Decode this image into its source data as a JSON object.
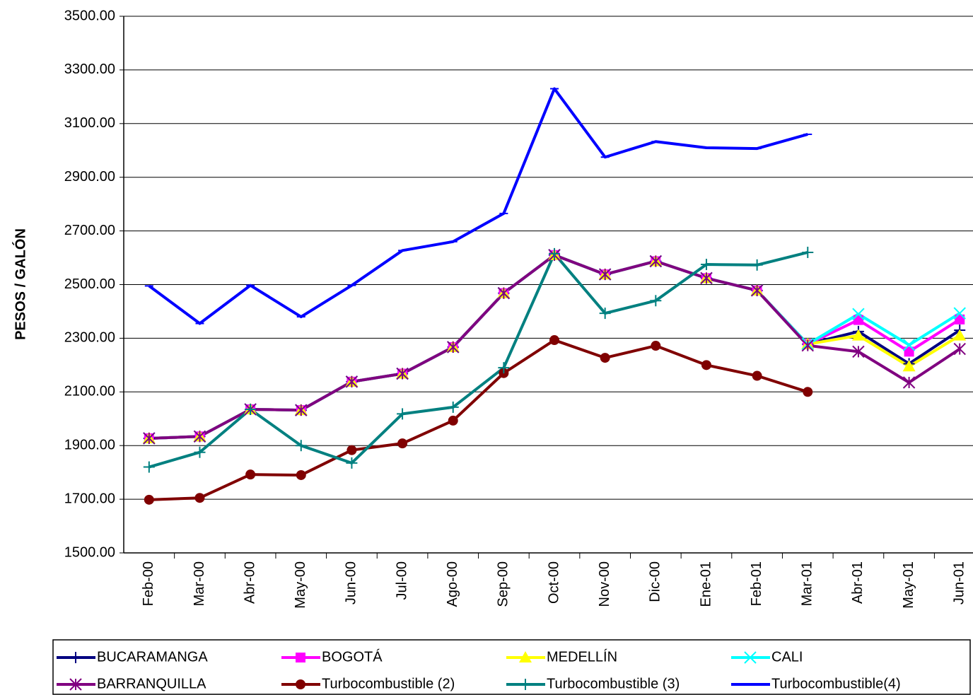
{
  "chart_data": {
    "type": "line",
    "y_label": "PESOS / GALÓN",
    "categories": [
      "Feb-00",
      "Mar-00",
      "Abr-00",
      "May-00",
      "Jun-00",
      "Jul-00",
      "Ago-00",
      "Sep-00",
      "Oct-00",
      "Nov-00",
      "Dic-00",
      "Ene-01",
      "Feb-01",
      "Mar-01",
      "Abr-01",
      "May-01",
      "Jun-01"
    ],
    "ylim": [
      1500,
      3500
    ],
    "yticks": [
      {
        "value": 1500,
        "label": "1500.00"
      },
      {
        "value": 1700,
        "label": "1700.00"
      },
      {
        "value": 1900,
        "label": "1900.00"
      },
      {
        "value": 2100,
        "label": "2100.00"
      },
      {
        "value": 2300,
        "label": "2300.00"
      },
      {
        "value": 2500,
        "label": "2500.00"
      },
      {
        "value": 2700,
        "label": "2700.00"
      },
      {
        "value": 2900,
        "label": "2900.00"
      },
      {
        "value": 3100,
        "label": "3100.00"
      },
      {
        "value": 3300,
        "label": "3300.00"
      },
      {
        "value": 3500,
        "label": "3500.00"
      }
    ],
    "grid": true,
    "legend": "bottom",
    "series": [
      {
        "name": "BUCARAMANGA",
        "color": "#000080",
        "marker": "plus",
        "values": [
          1927,
          1934,
          2035,
          2032,
          2138,
          2168,
          2267,
          2468,
          2610,
          2538,
          2587,
          2524,
          2478,
          2278,
          2325,
          2205,
          2330
        ]
      },
      {
        "name": "BOGOTÁ",
        "color": "#ff00ff",
        "marker": "square",
        "values": [
          1927,
          1934,
          2035,
          2032,
          2138,
          2168,
          2267,
          2468,
          2610,
          2538,
          2587,
          2524,
          2478,
          2278,
          2368,
          2250,
          2370
        ]
      },
      {
        "name": "MEDELLÍN",
        "color": "#ffff00",
        "marker": "triangle",
        "values": [
          1927,
          1934,
          2035,
          2032,
          2138,
          2168,
          2267,
          2468,
          2610,
          2538,
          2587,
          2524,
          2478,
          2278,
          2310,
          2195,
          2310
        ]
      },
      {
        "name": "CALI",
        "color": "#00ffff",
        "marker": "x",
        "values": [
          1927,
          1934,
          2035,
          2032,
          2138,
          2168,
          2267,
          2468,
          2610,
          2538,
          2587,
          2524,
          2478,
          2278,
          2390,
          2275,
          2393
        ]
      },
      {
        "name": "BARRANQUILLA",
        "color": "#800080",
        "marker": "asterisk",
        "values": [
          1927,
          1934,
          2035,
          2032,
          2138,
          2168,
          2267,
          2468,
          2610,
          2538,
          2587,
          2524,
          2478,
          2273,
          2250,
          2135,
          2260
        ]
      },
      {
        "name": "Turbocombustible (2)",
        "color": "#800000",
        "marker": "circle",
        "values": [
          1698,
          1705,
          1792,
          1790,
          1883,
          1908,
          1993,
          2170,
          2293,
          2227,
          2272,
          2200,
          2160,
          2100,
          null,
          null,
          null
        ]
      },
      {
        "name": "Turbocombustible (3)",
        "color": "#008080",
        "marker": "plus",
        "values": [
          1820,
          1875,
          2035,
          1900,
          1835,
          2018,
          2043,
          2190,
          2615,
          2393,
          2440,
          2575,
          2573,
          2620,
          null,
          null,
          null
        ]
      },
      {
        "name": "Turbocombustible(4)",
        "color": "#0000ff",
        "marker": "dash",
        "values": [
          2495,
          2355,
          2497,
          2380,
          2497,
          2627,
          2660,
          2765,
          3230,
          2975,
          3033,
          3010,
          3007,
          3060,
          null,
          null,
          null
        ]
      }
    ]
  }
}
